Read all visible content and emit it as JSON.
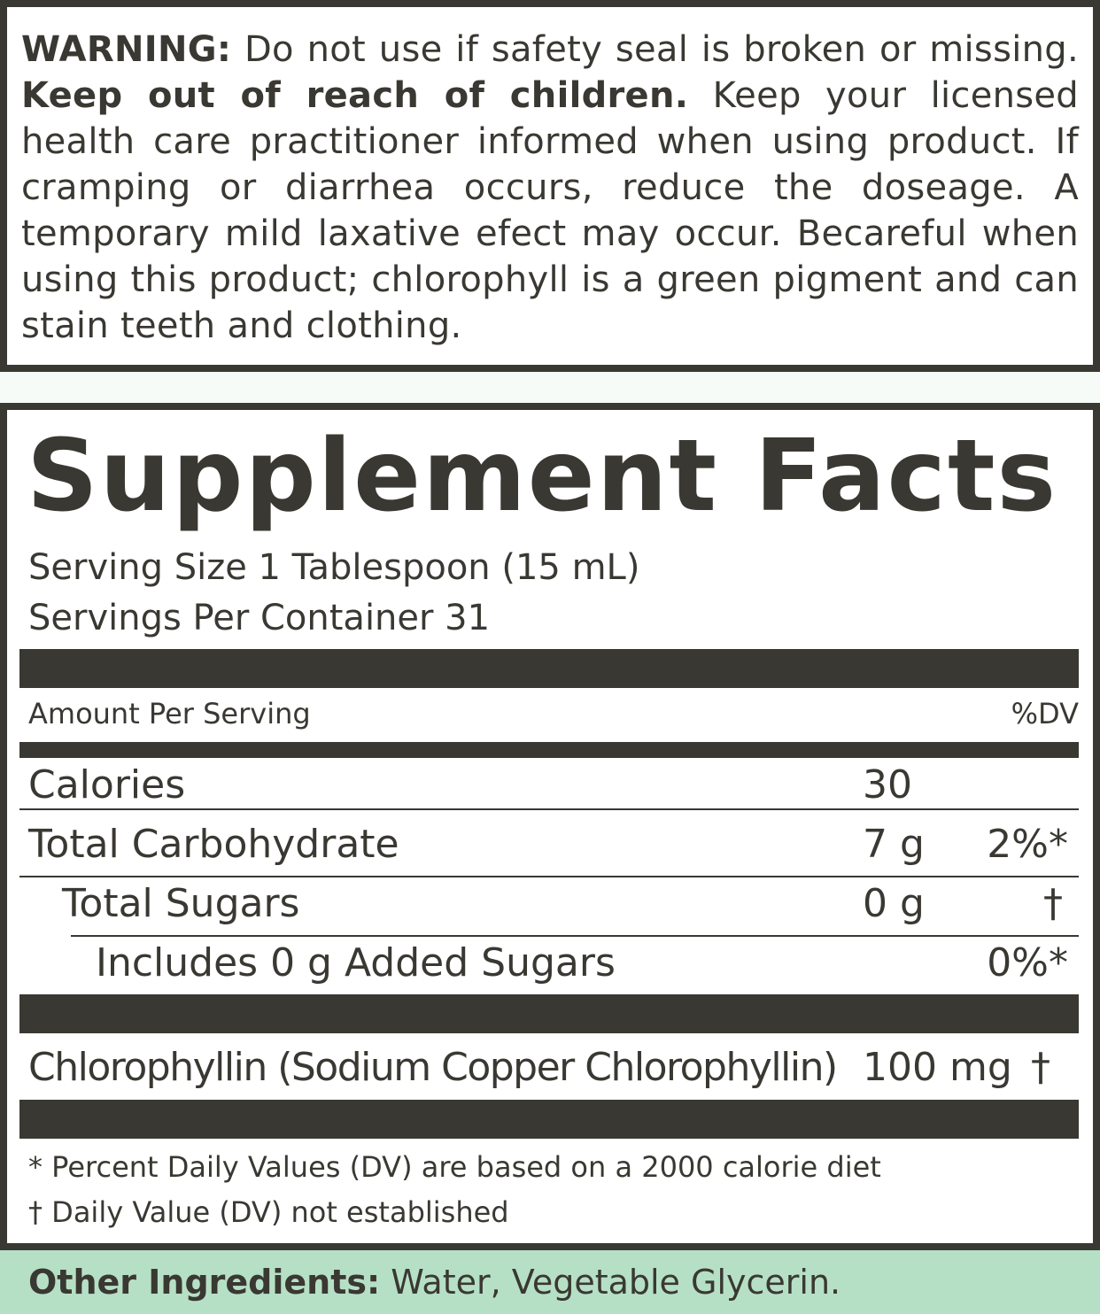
{
  "warning": {
    "label": "WARNING:",
    "text1": " Do not use if safety seal is broken or missing. ",
    "bold2": "Keep out of reach of children.",
    "text2": " Keep your licensed health care practitioner informed when using product. If cramping or diarrhea occurs, reduce the doseage. A temporary mild laxative efect may occur. Becareful when using this product; chlorophyll is a green pigment and can stain teeth and clothing."
  },
  "facts": {
    "title": "Supplement Facts",
    "serving_size": "Serving Size 1 Tablespoon (15 mL)",
    "servings_per_container": "Servings Per Container 31",
    "amount_header": "Amount Per Serving",
    "dv_header": "%DV",
    "rows": [
      {
        "name": "Calories",
        "amount": "30",
        "dv": ""
      },
      {
        "name": "Total Carbohydrate",
        "amount": "7 g",
        "dv": "2%*"
      },
      {
        "name": "Total Sugars",
        "amount": "0 g",
        "dv": "†"
      },
      {
        "name": "Includes 0 g Added Sugars",
        "amount": "",
        "dv": "0%*"
      },
      {
        "name": "Chlorophyllin (Sodium Copper Chlorophyllin)",
        "amount": "100 mg",
        "dv": "†"
      }
    ],
    "footnote1": "* Percent Daily Values (DV) are based on a 2000 calorie diet",
    "footnote2": "† Daily Value (DV) not established"
  },
  "other_ingredients": {
    "label": "Other Ingredients:",
    "text": " Water, Vegetable Glycerin."
  },
  "colors": {
    "dark": "#3a3832",
    "green": "#b6e0c6"
  }
}
